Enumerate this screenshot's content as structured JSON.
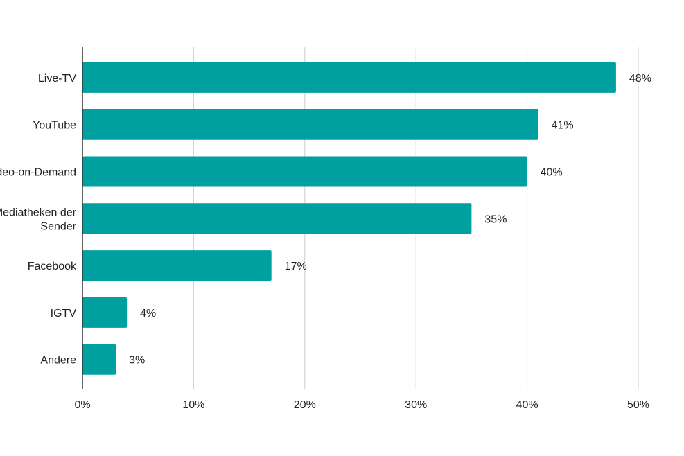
{
  "chart_data": {
    "type": "bar",
    "orientation": "horizontal",
    "categories": [
      [
        "Live-TV"
      ],
      [
        "YouTube"
      ],
      [
        "Video-on-Demand"
      ],
      [
        "Mediatheken der",
        "Sender"
      ],
      [
        "Facebook"
      ],
      [
        "IGTV"
      ],
      [
        "Andere"
      ]
    ],
    "values": [
      48,
      41,
      40,
      35,
      17,
      4,
      3
    ],
    "value_labels": [
      "48%",
      "41%",
      "40%",
      "35%",
      "17%",
      "4%",
      "3%"
    ],
    "xlim": [
      0,
      50
    ],
    "x_ticks": [
      0,
      10,
      20,
      30,
      40,
      50
    ],
    "x_tick_labels": [
      "0%",
      "10%",
      "20%",
      "30%",
      "40%",
      "50%"
    ],
    "bar_color": "#009FA0",
    "grid": true,
    "title": "",
    "xlabel": "",
    "ylabel": ""
  }
}
